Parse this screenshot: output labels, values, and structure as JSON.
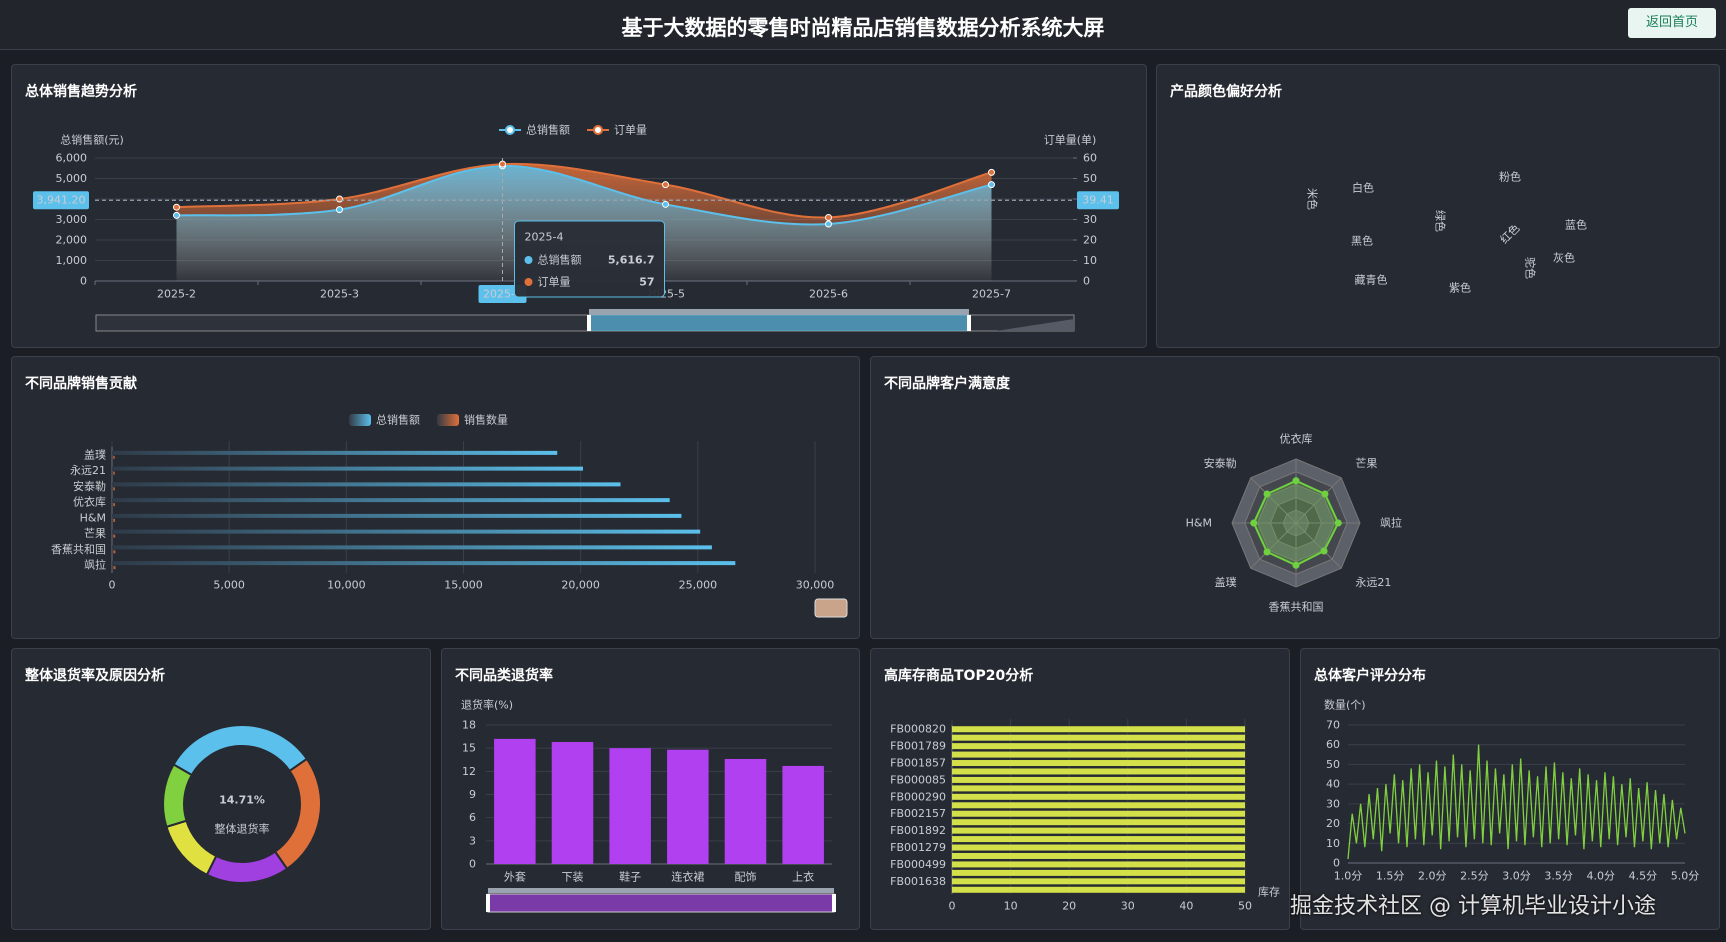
{
  "header": {
    "title": "基于大数据的零售时尚精品店销售数据分析系统大屏",
    "button": "返回首页"
  },
  "watermark": "掘金技术社区 @ 计算机毕业设计小途",
  "chart_data": [
    {
      "type": "line",
      "title": "总体销售趋势分析",
      "smooth": true,
      "area": true,
      "points": true,
      "x": [
        "2025-2",
        "2025-3",
        "2025-4",
        "2025-5",
        "2025-6",
        "2025-7"
      ],
      "series": [
        {
          "name": "总销售额",
          "color": "#5bc0eb",
          "values": [
            3200,
            3480,
            5616.7,
            3740,
            2780,
            4700
          ]
        },
        {
          "name": "订单量",
          "color": "#e0703a",
          "axis": "y2",
          "values": [
            36,
            40,
            57,
            47,
            31,
            53
          ]
        }
      ],
      "ylabel": "总销售额(元)",
      "y2label": "订单量(单)",
      "ylim": [
        0,
        6000
      ],
      "yticks": [
        0,
        {
          "value": 1000,
          "label": "1,000"
        },
        {
          "value": 2000,
          "label": "2,000"
        },
        {
          "value": 3000,
          "label": "3,000"
        },
        {
          "value": 4000,
          "label": "4,000"
        },
        {
          "value": 5000,
          "label": "5,000"
        },
        {
          "value": 6000,
          "label": "6,000"
        }
      ],
      "y2lim": [
        0,
        60
      ],
      "y2ticks": [
        0,
        10,
        20,
        30,
        40,
        50,
        60
      ],
      "mark_lines": [
        {
          "axis": "y",
          "value": 3941.2,
          "label": "3,941.20"
        },
        {
          "axis": "y2",
          "value": 39.41,
          "label": "39.41"
        }
      ],
      "tooltip": {
        "title": "2025-4",
        "items": [
          {
            "name": "总销售额",
            "value": 5616.7,
            "label": "5,616.7"
          },
          {
            "name": "订单量",
            "value": 57
          }
        ]
      }
    },
    {
      "type": "wordcloud",
      "title": "产品颜色偏好分析",
      "words": [
        {
          "text": "白色",
          "color": "#e07a4a"
        },
        {
          "text": "绿色",
          "color": "#4ec9b0"
        },
        {
          "text": "粉色",
          "color": "#9cb8d0"
        },
        {
          "text": "黑色",
          "color": "#c8b89a"
        },
        {
          "text": "红色",
          "color": "#36b37e"
        },
        {
          "text": "蓝色",
          "color": "#e07a4a"
        },
        {
          "text": "灰色",
          "color": "#9b59d0"
        },
        {
          "text": "藏青色",
          "color": "#e06a7a"
        },
        {
          "text": "紫色",
          "color": "#8060d0"
        },
        {
          "text": "米色",
          "color": "#5bc0eb"
        },
        {
          "text": "驼色",
          "color": "#7a5090"
        }
      ]
    },
    {
      "type": "bar",
      "orientation": "horizontal",
      "title": "不同品牌销售贡献",
      "categories": [
        "盖璞",
        "永远21",
        "安泰勒",
        "优衣库",
        "H&M",
        "芒果",
        "香蕉共和国",
        "飒拉"
      ],
      "series": [
        {
          "name": "总销售额",
          "color": "#5bc0eb",
          "values": [
            19000,
            20100,
            21700,
            23800,
            24300,
            25100,
            25600,
            26600
          ]
        },
        {
          "name": "销售数量",
          "color": "#e0703a",
          "values": [
            110,
            115,
            120,
            125,
            130,
            135,
            140,
            150
          ]
        }
      ],
      "xlim": [
        0,
        30000
      ],
      "xticks": [
        0,
        {
          "value": 5000,
          "label": "5,000"
        },
        {
          "value": 10000,
          "label": "10,000"
        },
        {
          "value": 15000,
          "label": "15,000"
        },
        {
          "value": 20000,
          "label": "20,000"
        },
        {
          "value": 25000,
          "label": "25,000"
        },
        {
          "value": 30000,
          "label": "30,000"
        }
      ]
    },
    {
      "type": "radar",
      "title": "不同品牌客户满意度",
      "indicators": [
        "优衣库",
        "芒果",
        "飒拉",
        "永远21",
        "香蕉共和国",
        "盖璞",
        "H&M",
        "安泰勒"
      ],
      "rlim": [
        0,
        5
      ],
      "color": "#6fd13f",
      "values": [
        3.3,
        3.2,
        3.3,
        3.1,
        3.3,
        3.2,
        3.3,
        3.2
      ]
    },
    {
      "type": "pie",
      "title": "整体退货率及原因分析",
      "donut": true,
      "values": [
        32,
        25,
        17,
        13,
        13
      ],
      "colors": [
        "#5bc0eb",
        "#e0703a",
        "#a040e0",
        "#e0e040",
        "#80d040"
      ],
      "center_value": {
        "value": 14.71,
        "label": "14.71%"
      },
      "center_text": "整体退货率"
    },
    {
      "type": "bar",
      "orientation": "vertical",
      "title": "不同品类退货率",
      "categories": [
        "外套",
        "下装",
        "鞋子",
        "连衣裙",
        "配饰",
        "上衣"
      ],
      "values": [
        16.2,
        15.8,
        15.0,
        14.8,
        13.6,
        12.7
      ],
      "color": "#b040f0",
      "ylabel": "退货率(%)",
      "ylim": [
        0,
        18
      ],
      "yticks": [
        0,
        3,
        6,
        9,
        12,
        15,
        18
      ]
    },
    {
      "type": "bar",
      "orientation": "horizontal",
      "title": "高库存商品TOP20分析",
      "categories": [
        "FB000820",
        null,
        "FB001789",
        null,
        "FB001857",
        null,
        "FB000085",
        null,
        "FB000290",
        null,
        "FB002157",
        null,
        "FB001892",
        null,
        "FB001279",
        null,
        "FB000499",
        null,
        "FB001638",
        null
      ],
      "values": [
        50,
        50,
        50,
        50,
        50,
        50,
        50,
        50,
        50,
        50,
        50,
        50,
        50,
        50,
        50,
        50,
        50,
        50,
        50,
        50
      ],
      "color": "#d4e04a",
      "xlabel": "库存",
      "xlim": [
        0,
        50
      ],
      "xticks": [
        0,
        10,
        20,
        30,
        40,
        50
      ]
    },
    {
      "type": "line",
      "title": "总体客户评分分布",
      "color": "#80d040",
      "categories": [
        "1.0分",
        null,
        null,
        null,
        null,
        null,
        null,
        null,
        null,
        null,
        "1.5分",
        null,
        null,
        null,
        null,
        null,
        null,
        null,
        null,
        null,
        "2.0分",
        null,
        null,
        null,
        null,
        null,
        null,
        null,
        null,
        null,
        "2.5分",
        null,
        null,
        null,
        null,
        null,
        null,
        null,
        null,
        null,
        "3.0分",
        null,
        null,
        null,
        null,
        null,
        null,
        null,
        null,
        null,
        "3.5分",
        null,
        null,
        null,
        null,
        null,
        null,
        null,
        null,
        null,
        "4.0分",
        null,
        null,
        null,
        null,
        null,
        null,
        null,
        null,
        null,
        "4.5分",
        null,
        null,
        null,
        null,
        null,
        null,
        null,
        null,
        null,
        "5.0分"
      ],
      "values": [
        2,
        25,
        10,
        30,
        8,
        35,
        12,
        38,
        6,
        40,
        15,
        45,
        10,
        42,
        8,
        48,
        12,
        50,
        9,
        46,
        14,
        52,
        7,
        49,
        11,
        55,
        13,
        50,
        8,
        47,
        12,
        60,
        10,
        52,
        9,
        48,
        15,
        45,
        7,
        50,
        11,
        53,
        9,
        47,
        13,
        44,
        8,
        49,
        10,
        51,
        12,
        46,
        9,
        43,
        14,
        48,
        7,
        45,
        11,
        42,
        8,
        46,
        12,
        44,
        9,
        40,
        13,
        43,
        8,
        38,
        11,
        41,
        7,
        37,
        10,
        35,
        8,
        32,
        12,
        28,
        15
      ],
      "ylabel": "数量(个)",
      "ylim": [
        0,
        70
      ],
      "yticks": [
        0,
        10,
        20,
        30,
        40,
        50,
        60,
        70
      ]
    }
  ]
}
